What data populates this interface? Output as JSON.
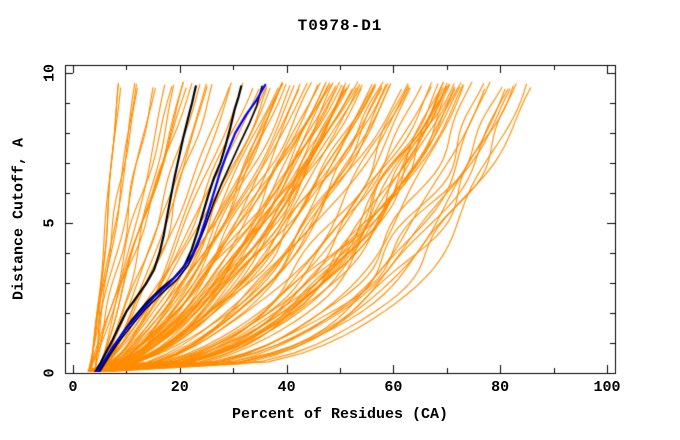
{
  "chart_data": {
    "type": "line",
    "title": "T0978-D1",
    "xlabel": "Percent of Residues (CA)",
    "ylabel": "Distance Cutoff, A",
    "xlim": [
      0,
      100
    ],
    "ylim": [
      0,
      10
    ],
    "x_display_lim": [
      -1.5,
      101.5
    ],
    "y_display_lim": [
      0,
      10.26
    ],
    "x_major_tick_step": 20,
    "x_minor_tick_step": 10,
    "y_major_tick_step": 5,
    "y_minor_tick_step": 1,
    "x_major_ticks": [
      0,
      20,
      40,
      60,
      80,
      100
    ],
    "y_major_ticks": [
      0,
      5,
      10
    ],
    "x_tick_labels": [
      "0",
      "20",
      "40",
      "60",
      "80",
      "100"
    ],
    "y_tick_labels": [
      "0",
      "5",
      "10"
    ],
    "grid": false,
    "legend": "none",
    "background_color": "#ffffff",
    "axis_color": "#000000",
    "major_tick_len": 8,
    "minor_tick_len": 5,
    "series": [
      {
        "name": "model-curve-black-1",
        "color": "#000000",
        "width": 2.2,
        "points": [
          [
            4.2,
            0.05
          ],
          [
            5.2,
            0.35
          ],
          [
            6.2,
            0.7
          ],
          [
            7.4,
            1.1
          ],
          [
            8.6,
            1.55
          ],
          [
            10.0,
            2.05
          ],
          [
            11.8,
            2.5
          ],
          [
            13.6,
            2.95
          ],
          [
            15.2,
            3.45
          ],
          [
            16.2,
            4.0
          ],
          [
            17.0,
            4.6
          ],
          [
            17.6,
            5.2
          ],
          [
            18.3,
            5.85
          ],
          [
            19.0,
            6.5
          ],
          [
            19.8,
            7.15
          ],
          [
            20.6,
            7.8
          ],
          [
            21.5,
            8.45
          ],
          [
            22.3,
            9.0
          ],
          [
            23.0,
            9.55
          ]
        ]
      },
      {
        "name": "model-curve-black-2",
        "color": "#000000",
        "width": 2.2,
        "points": [
          [
            4.8,
            0.05
          ],
          [
            5.8,
            0.35
          ],
          [
            7.2,
            0.75
          ],
          [
            9.0,
            1.25
          ],
          [
            11.2,
            1.8
          ],
          [
            13.8,
            2.35
          ],
          [
            16.4,
            2.8
          ],
          [
            18.8,
            3.15
          ],
          [
            20.8,
            3.55
          ],
          [
            22.2,
            4.1
          ],
          [
            23.3,
            4.7
          ],
          [
            24.3,
            5.3
          ],
          [
            25.3,
            5.9
          ],
          [
            26.4,
            6.5
          ],
          [
            27.6,
            7.0
          ],
          [
            28.6,
            7.6
          ],
          [
            29.5,
            8.2
          ],
          [
            30.3,
            8.8
          ],
          [
            31.0,
            9.2
          ],
          [
            31.5,
            9.55
          ]
        ]
      },
      {
        "name": "model-curve-black-3",
        "color": "#000000",
        "width": 1.6,
        "points": [
          [
            5.0,
            0.05
          ],
          [
            6.4,
            0.45
          ],
          [
            8.2,
            0.95
          ],
          [
            10.6,
            1.5
          ],
          [
            13.4,
            2.1
          ],
          [
            16.6,
            2.65
          ],
          [
            19.4,
            3.1
          ],
          [
            21.6,
            3.6
          ],
          [
            23.2,
            4.2
          ],
          [
            24.8,
            4.9
          ],
          [
            26.2,
            5.6
          ],
          [
            27.8,
            6.3
          ],
          [
            29.6,
            7.0
          ],
          [
            31.4,
            7.7
          ],
          [
            33.0,
            8.3
          ],
          [
            34.4,
            8.9
          ],
          [
            35.4,
            9.55
          ]
        ]
      },
      {
        "name": "model-curve-blue",
        "color": "#0000ff",
        "width": 2.2,
        "points": [
          [
            4.6,
            0.05
          ],
          [
            5.8,
            0.4
          ],
          [
            7.4,
            0.85
          ],
          [
            9.6,
            1.4
          ],
          [
            12.2,
            1.95
          ],
          [
            15.0,
            2.5
          ],
          [
            17.8,
            2.95
          ],
          [
            20.2,
            3.4
          ],
          [
            22.4,
            3.95
          ],
          [
            23.8,
            4.55
          ],
          [
            25.0,
            5.2
          ],
          [
            26.2,
            5.9
          ],
          [
            27.4,
            6.6
          ],
          [
            28.8,
            7.3
          ],
          [
            30.4,
            8.0
          ],
          [
            32.4,
            8.6
          ],
          [
            34.4,
            9.1
          ],
          [
            36.0,
            9.6
          ]
        ]
      }
    ],
    "ensemble": {
      "name": "prediction-models-orange",
      "color": "#ff8c00",
      "width": 1.1,
      "seed": 978,
      "count": 112,
      "start_x_range": [
        2.8,
        5.4
      ],
      "start_y_range": [
        0.02,
        0.12
      ],
      "top_y_range": [
        9.45,
        9.7
      ],
      "top_x_bins": [
        [
          8,
          18,
          9
        ],
        [
          18,
          32,
          13
        ],
        [
          32,
          45,
          17
        ],
        [
          45,
          60,
          36
        ],
        [
          60,
          75,
          26
        ],
        [
          75,
          88,
          11
        ]
      ]
    }
  }
}
